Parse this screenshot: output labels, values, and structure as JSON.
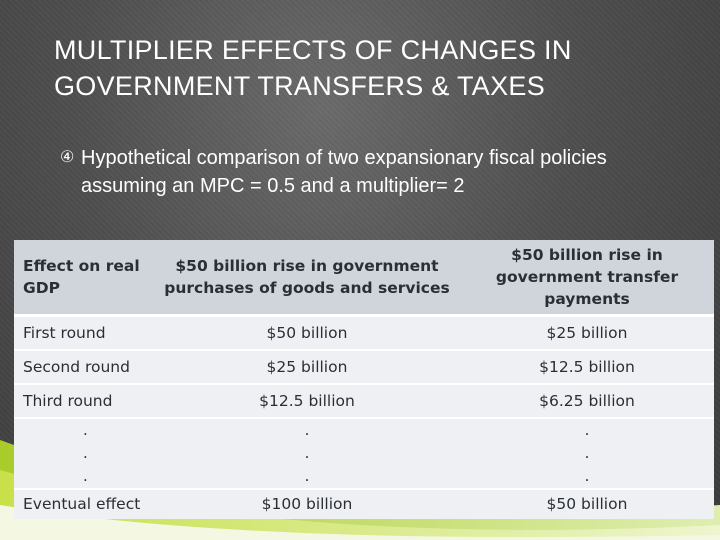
{
  "slide": {
    "title": "MULTIPLIER EFFECTS OF CHANGES IN GOVERNMENT TRANSFERS & TAXES",
    "bullet_icon": "circled-digit-4-icon",
    "bullet_marker": "④",
    "bullet_text": "Hypothetical comparison of two expansionary fiscal policies assuming an MPC = 0.5 and a multiplier= 2"
  },
  "table": {
    "headers": [
      "Effect on real GDP",
      "$50 billion rise in government purchases of goods and services",
      "$50 billion rise in government transfer payments"
    ],
    "rows": [
      [
        "First round",
        "$50 billion",
        "$25 billion"
      ],
      [
        "Second round",
        "$25 billion",
        "$12.5 billion"
      ],
      [
        "Third round",
        "$12.5 billion",
        "$6.25 billion"
      ]
    ],
    "ellipsis": [
      ".",
      ".",
      "."
    ],
    "final_row": [
      "Eventual effect",
      "$100 billion",
      "$50 billion"
    ]
  },
  "colors": {
    "background": "#4e4e4e",
    "header_fill": "#cfd5db",
    "row_fill": "#eef0f3",
    "accent_green": "#b5d334"
  }
}
